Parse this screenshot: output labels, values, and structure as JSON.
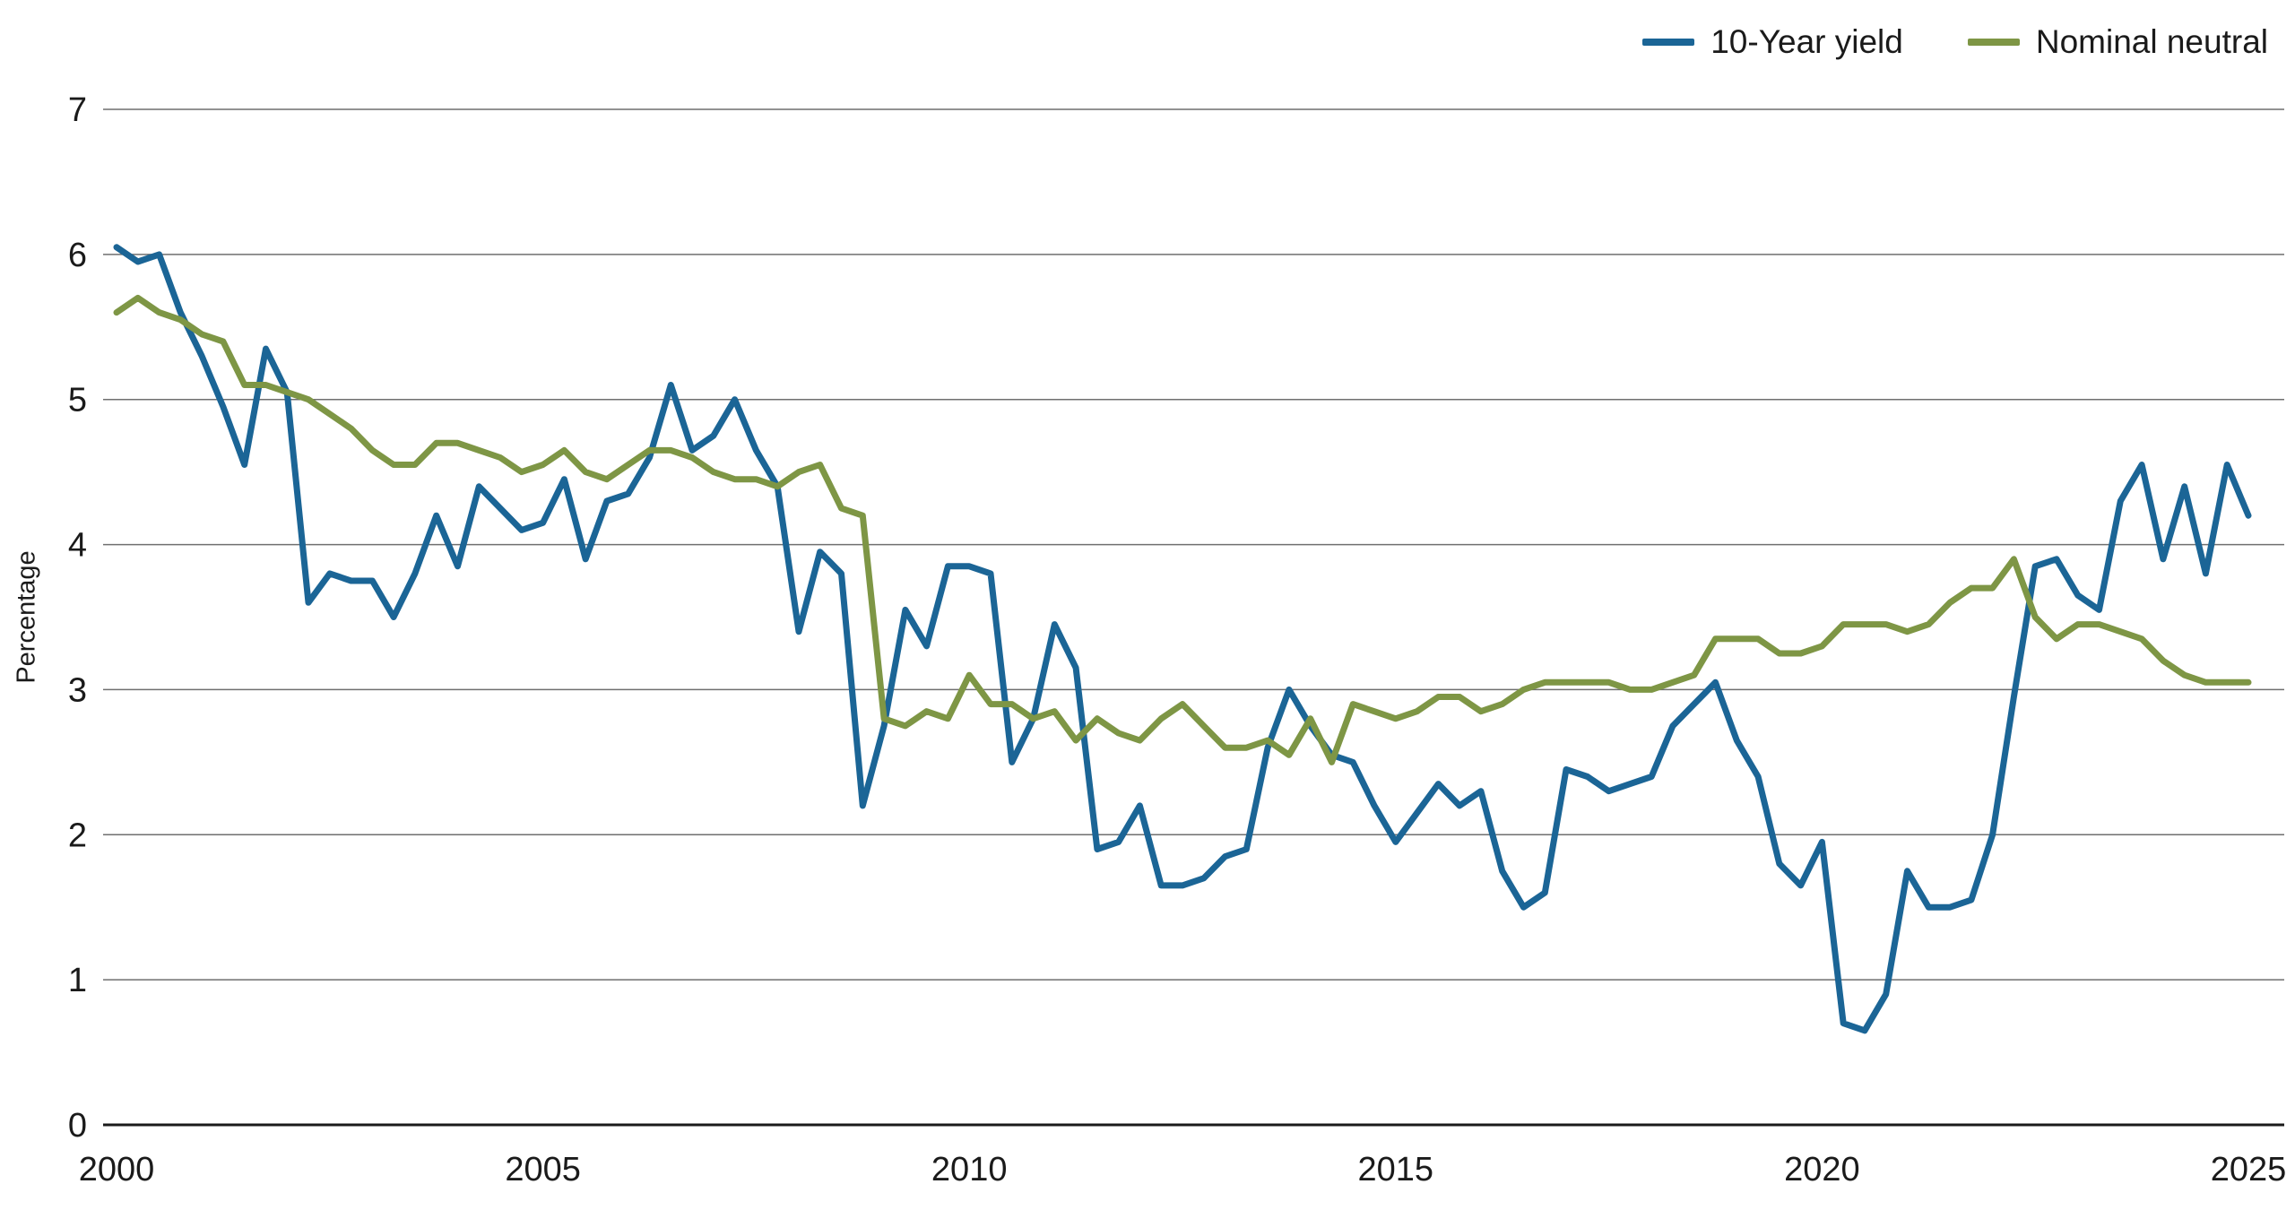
{
  "legend": {
    "items": [
      {
        "label": "10-Year yield",
        "color": "#1b6596"
      },
      {
        "label": "Nominal neutral",
        "color": "#7e9645"
      }
    ]
  },
  "chart_data": {
    "type": "line",
    "title": "",
    "ylabel": "Percentage",
    "xlabel": "",
    "ylim": [
      0,
      7
    ],
    "yticks": [
      0,
      1,
      2,
      3,
      4,
      5,
      6,
      7
    ],
    "xticks": [
      2000,
      2005,
      2010,
      2015,
      2020,
      2025
    ],
    "x_start": 2000,
    "x_end": 2025,
    "frequency": "quarterly",
    "grid": "horizontal",
    "legend_position": "top-right",
    "colors": {
      "gridline": "#6f6f6f",
      "axis": "#1a1a1a",
      "text": "#1a1a1a"
    },
    "series": [
      {
        "name": "10-Year yield",
        "color": "#1b6596",
        "values": [
          6.05,
          5.95,
          6.0,
          5.6,
          5.3,
          4.95,
          4.55,
          5.35,
          5.05,
          3.6,
          3.8,
          3.75,
          3.75,
          3.5,
          3.8,
          4.2,
          3.85,
          4.4,
          4.25,
          4.1,
          4.15,
          4.45,
          3.9,
          4.3,
          4.35,
          4.6,
          5.1,
          4.65,
          4.75,
          5.0,
          4.65,
          4.4,
          3.4,
          3.95,
          3.8,
          2.2,
          2.75,
          3.55,
          3.3,
          3.85,
          3.85,
          3.8,
          2.5,
          2.8,
          3.45,
          3.15,
          1.9,
          1.95,
          2.2,
          1.65,
          1.65,
          1.7,
          1.85,
          1.9,
          2.6,
          3.0,
          2.75,
          2.55,
          2.5,
          2.2,
          1.95,
          2.15,
          2.35,
          2.2,
          2.3,
          1.75,
          1.5,
          1.6,
          2.45,
          2.4,
          2.3,
          2.35,
          2.4,
          2.75,
          2.9,
          3.05,
          2.65,
          2.4,
          1.8,
          1.65,
          1.95,
          0.7,
          0.65,
          0.9,
          1.75,
          1.5,
          1.5,
          1.55,
          2.0,
          2.95,
          3.85,
          3.9,
          3.65,
          3.55,
          4.3,
          4.55,
          3.9,
          4.4,
          3.8,
          4.55,
          4.2
        ]
      },
      {
        "name": "Nominal neutral",
        "color": "#7e9645",
        "values": [
          5.6,
          5.7,
          5.6,
          5.55,
          5.45,
          5.4,
          5.1,
          5.1,
          5.05,
          5.0,
          4.9,
          4.8,
          4.65,
          4.55,
          4.55,
          4.7,
          4.7,
          4.65,
          4.6,
          4.5,
          4.55,
          4.65,
          4.5,
          4.45,
          4.55,
          4.65,
          4.65,
          4.6,
          4.5,
          4.45,
          4.45,
          4.4,
          4.5,
          4.55,
          4.25,
          4.2,
          2.8,
          2.75,
          2.85,
          2.8,
          3.1,
          2.9,
          2.9,
          2.8,
          2.85,
          2.65,
          2.8,
          2.7,
          2.65,
          2.8,
          2.9,
          2.75,
          2.6,
          2.6,
          2.65,
          2.55,
          2.8,
          2.5,
          2.9,
          2.85,
          2.8,
          2.85,
          2.95,
          2.95,
          2.85,
          2.9,
          3.0,
          3.05,
          3.05,
          3.05,
          3.05,
          3.0,
          3.0,
          3.05,
          3.1,
          3.35,
          3.35,
          3.35,
          3.25,
          3.25,
          3.3,
          3.45,
          3.45,
          3.45,
          3.4,
          3.45,
          3.6,
          3.7,
          3.7,
          3.9,
          3.5,
          3.35,
          3.45,
          3.45,
          3.4,
          3.35,
          3.2,
          3.1,
          3.05,
          3.05,
          3.05
        ]
      }
    ]
  }
}
